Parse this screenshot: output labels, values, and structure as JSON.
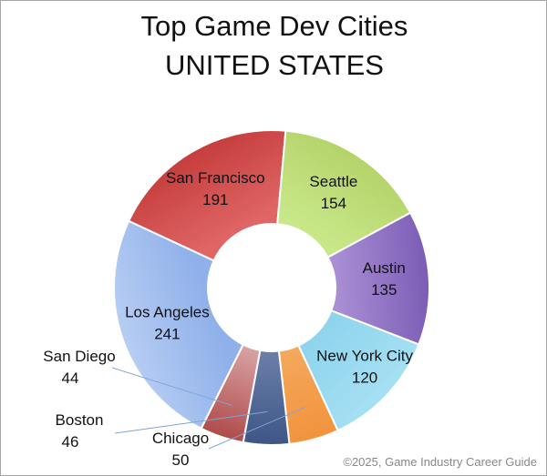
{
  "chart_data": {
    "type": "pie",
    "title": [
      "Top Game Dev Cities",
      "UNITED STATES"
    ],
    "donut": true,
    "categories": [
      "San Francisco",
      "Seattle",
      "Austin",
      "New York City",
      "Chicago",
      "Boston",
      "San Diego",
      "Los Angeles"
    ],
    "values": [
      191,
      154,
      135,
      120,
      50,
      46,
      44,
      241
    ],
    "colors": [
      "#e06666",
      "#c9e88a",
      "#a98fd4",
      "#8ed4ec",
      "#f4a95c",
      "#6b7fa8",
      "#d8a3a3",
      "#8fb0ea"
    ],
    "gradient_to": [
      "#c63d3d",
      "#b5d36a",
      "#7b5cb5",
      "#a6e0f4",
      "#f2933d",
      "#3e5586",
      "#b04a4a",
      "#b7cdf3"
    ],
    "labels_outside": [
      "Chicago",
      "Boston",
      "San Diego"
    ],
    "legend": "none"
  },
  "credit": "©2025, Game Industry Career Guide"
}
